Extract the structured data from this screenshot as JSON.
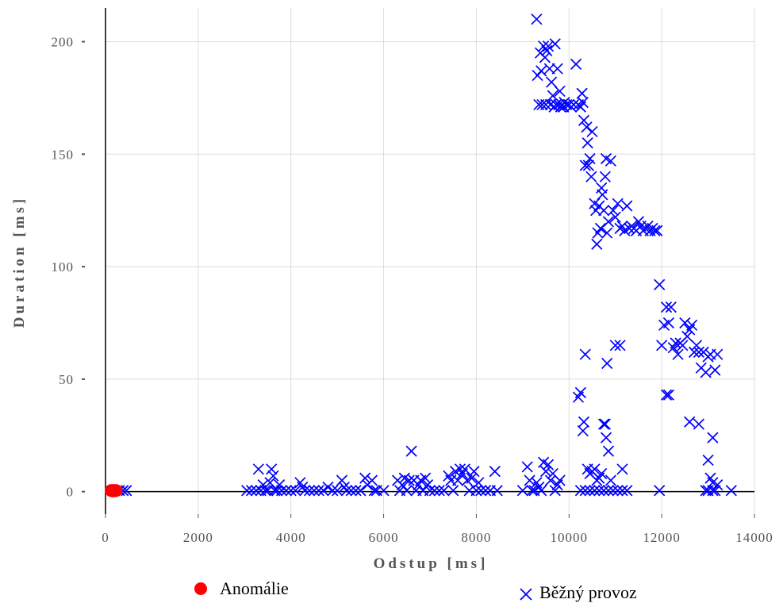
{
  "chart_data": {
    "type": "scatter",
    "title": "",
    "xlabel": "Odstup [ms]",
    "ylabel": "Duration [ms]",
    "xlim": [
      0,
      14000
    ],
    "ylim": [
      -10,
      215
    ],
    "xticks": [
      0,
      2000,
      4000,
      6000,
      8000,
      10000,
      12000,
      14000
    ],
    "yticks": [
      0,
      50,
      100,
      150,
      200
    ],
    "xtick_labels": [
      "0",
      "2000",
      "4000",
      "6000",
      "8000",
      "10000",
      "12000",
      "14000"
    ],
    "ytick_labels": [
      "0",
      "50",
      "100",
      "150",
      "200"
    ],
    "grid": true,
    "legend_position": "bottom",
    "series": [
      {
        "name": "Anomálie",
        "marker": "circle",
        "color": "#ff0000",
        "points": [
          [
            120,
            0.5
          ],
          [
            150,
            0.5
          ],
          [
            180,
            0.5
          ],
          [
            200,
            0.5
          ],
          [
            230,
            0.5
          ],
          [
            160,
            0.3
          ],
          [
            210,
            0.4
          ]
        ]
      },
      {
        "name": "Běžný provoz",
        "marker": "x",
        "color": "#0000ff",
        "points": [
          [
            300,
            0.5
          ],
          [
            380,
            0.5
          ],
          [
            450,
            0.5
          ],
          [
            3050,
            0.5
          ],
          [
            3150,
            0.5
          ],
          [
            3250,
            0.5
          ],
          [
            3300,
            10
          ],
          [
            3350,
            0.5
          ],
          [
            3400,
            3
          ],
          [
            3450,
            0.5
          ],
          [
            3500,
            0.5
          ],
          [
            3550,
            4
          ],
          [
            3580,
            10
          ],
          [
            3620,
            7
          ],
          [
            3650,
            0.5
          ],
          [
            3700,
            0.5
          ],
          [
            3750,
            3
          ],
          [
            3800,
            0.5
          ],
          [
            3900,
            0.5
          ],
          [
            4000,
            0.5
          ],
          [
            4100,
            0.5
          ],
          [
            4200,
            4
          ],
          [
            4250,
            2
          ],
          [
            4300,
            0.5
          ],
          [
            4400,
            0.5
          ],
          [
            4500,
            0.5
          ],
          [
            4600,
            0.5
          ],
          [
            4700,
            0.5
          ],
          [
            4800,
            2
          ],
          [
            4900,
            0.5
          ],
          [
            5000,
            0.5
          ],
          [
            5100,
            5
          ],
          [
            5150,
            2
          ],
          [
            5200,
            0.5
          ],
          [
            5300,
            0.5
          ],
          [
            5400,
            0.5
          ],
          [
            5500,
            0.5
          ],
          [
            5600,
            6
          ],
          [
            5650,
            3
          ],
          [
            5750,
            5
          ],
          [
            5800,
            0.5
          ],
          [
            5850,
            0.5
          ],
          [
            6000,
            0.5
          ],
          [
            6300,
            5
          ],
          [
            6350,
            0.5
          ],
          [
            6400,
            3
          ],
          [
            6450,
            6
          ],
          [
            6500,
            0.5
          ],
          [
            6550,
            5
          ],
          [
            6600,
            18
          ],
          [
            6650,
            5
          ],
          [
            6700,
            0.5
          ],
          [
            6750,
            3
          ],
          [
            6800,
            5
          ],
          [
            6850,
            0.5
          ],
          [
            6900,
            6
          ],
          [
            6950,
            3
          ],
          [
            7000,
            0.5
          ],
          [
            7100,
            0.5
          ],
          [
            7200,
            0.5
          ],
          [
            7300,
            0.5
          ],
          [
            7400,
            7
          ],
          [
            7450,
            5
          ],
          [
            7500,
            0.5
          ],
          [
            7550,
            9
          ],
          [
            7600,
            5
          ],
          [
            7650,
            10
          ],
          [
            7700,
            8
          ],
          [
            7750,
            10
          ],
          [
            7800,
            5
          ],
          [
            7850,
            0.5
          ],
          [
            7900,
            6
          ],
          [
            7950,
            9
          ],
          [
            8000,
            0.5
          ],
          [
            8050,
            4
          ],
          [
            8100,
            0.5
          ],
          [
            8200,
            0.5
          ],
          [
            8300,
            0.5
          ],
          [
            8400,
            9
          ],
          [
            8450,
            0.5
          ],
          [
            9000,
            0.5
          ],
          [
            9100,
            11
          ],
          [
            9150,
            5
          ],
          [
            9200,
            0.5
          ],
          [
            9250,
            0.5
          ],
          [
            9300,
            4
          ],
          [
            9350,
            2
          ],
          [
            9400,
            0.5
          ],
          [
            9450,
            13
          ],
          [
            9500,
            9
          ],
          [
            9550,
            12
          ],
          [
            9600,
            5
          ],
          [
            9650,
            8
          ],
          [
            9700,
            0.5
          ],
          [
            9750,
            3
          ],
          [
            9800,
            5
          ],
          [
            9300,
            210
          ],
          [
            9320,
            185
          ],
          [
            9350,
            172
          ],
          [
            9380,
            195
          ],
          [
            9400,
            187
          ],
          [
            9420,
            172
          ],
          [
            9450,
            198
          ],
          [
            9480,
            193
          ],
          [
            9500,
            172
          ],
          [
            9520,
            196
          ],
          [
            9550,
            198
          ],
          [
            9580,
            188
          ],
          [
            9600,
            172
          ],
          [
            9620,
            182
          ],
          [
            9650,
            176
          ],
          [
            9680,
            171
          ],
          [
            9700,
            199
          ],
          [
            9720,
            172
          ],
          [
            9750,
            188
          ],
          [
            9780,
            172
          ],
          [
            9800,
            178
          ],
          [
            9820,
            171
          ],
          [
            9850,
            172
          ],
          [
            9880,
            171
          ],
          [
            9900,
            173
          ],
          [
            9950,
            172
          ],
          [
            10000,
            172
          ],
          [
            10050,
            171
          ],
          [
            10100,
            172
          ],
          [
            10150,
            190
          ],
          [
            10200,
            172
          ],
          [
            10250,
            171
          ],
          [
            10280,
            177
          ],
          [
            10300,
            173
          ],
          [
            10320,
            165
          ],
          [
            10350,
            145
          ],
          [
            10380,
            162
          ],
          [
            10400,
            155
          ],
          [
            10420,
            145
          ],
          [
            10450,
            148
          ],
          [
            10480,
            140
          ],
          [
            10500,
            160
          ],
          [
            10550,
            128
          ],
          [
            10580,
            125
          ],
          [
            10600,
            110
          ],
          [
            10620,
            115
          ],
          [
            10650,
            127
          ],
          [
            10680,
            117
          ],
          [
            10700,
            135
          ],
          [
            10720,
            132
          ],
          [
            10750,
            125
          ],
          [
            10780,
            140
          ],
          [
            10800,
            148
          ],
          [
            10820,
            115
          ],
          [
            10850,
            120
          ],
          [
            10900,
            147
          ],
          [
            10950,
            125
          ],
          [
            11000,
            122
          ],
          [
            11050,
            128
          ],
          [
            11100,
            117
          ],
          [
            11150,
            118
          ],
          [
            11200,
            116
          ],
          [
            11250,
            127
          ],
          [
            11300,
            117
          ],
          [
            11350,
            118
          ],
          [
            11400,
            117
          ],
          [
            11450,
            116
          ],
          [
            11500,
            120
          ],
          [
            11550,
            118
          ],
          [
            11600,
            116
          ],
          [
            11650,
            117
          ],
          [
            11700,
            118
          ],
          [
            11750,
            116
          ],
          [
            11800,
            117
          ],
          [
            11850,
            116
          ],
          [
            11900,
            116
          ],
          [
            10200,
            42
          ],
          [
            10250,
            44
          ],
          [
            10300,
            27
          ],
          [
            10320,
            31
          ],
          [
            10350,
            61
          ],
          [
            10400,
            10
          ],
          [
            10450,
            8
          ],
          [
            10500,
            9
          ],
          [
            10550,
            10
          ],
          [
            10600,
            5
          ],
          [
            10650,
            6
          ],
          [
            10700,
            8
          ],
          [
            10750,
            30
          ],
          [
            10780,
            30
          ],
          [
            10800,
            24
          ],
          [
            10820,
            57
          ],
          [
            10850,
            18
          ],
          [
            10900,
            5
          ],
          [
            11000,
            65
          ],
          [
            11100,
            65
          ],
          [
            11150,
            10
          ],
          [
            10250,
            0.5
          ],
          [
            10350,
            0.5
          ],
          [
            10450,
            0.5
          ],
          [
            10550,
            0.5
          ],
          [
            10650,
            0.5
          ],
          [
            10750,
            0.5
          ],
          [
            10850,
            0.5
          ],
          [
            10950,
            0.5
          ],
          [
            11050,
            0.5
          ],
          [
            11150,
            0.5
          ],
          [
            11250,
            0.5
          ],
          [
            11950,
            92
          ],
          [
            12000,
            65
          ],
          [
            12050,
            74
          ],
          [
            12100,
            82
          ],
          [
            12150,
            75
          ],
          [
            12200,
            82
          ],
          [
            12250,
            64
          ],
          [
            12300,
            66
          ],
          [
            12350,
            61
          ],
          [
            12400,
            66
          ],
          [
            12450,
            65
          ],
          [
            12500,
            75
          ],
          [
            12550,
            69
          ],
          [
            12600,
            72
          ],
          [
            12650,
            74
          ],
          [
            12700,
            62
          ],
          [
            12750,
            65
          ],
          [
            12800,
            62
          ],
          [
            12850,
            55
          ],
          [
            12900,
            62
          ],
          [
            12950,
            53
          ],
          [
            13000,
            60
          ],
          [
            13050,
            61
          ],
          [
            13100,
            24
          ],
          [
            13150,
            54
          ],
          [
            13200,
            61
          ],
          [
            12100,
            43
          ],
          [
            12150,
            43
          ],
          [
            12600,
            31
          ],
          [
            12800,
            30
          ],
          [
            13000,
            14
          ],
          [
            13050,
            6
          ],
          [
            13100,
            4
          ],
          [
            13150,
            0.5
          ],
          [
            13200,
            3
          ],
          [
            11950,
            0.5
          ],
          [
            12950,
            0.5
          ],
          [
            13000,
            0.5
          ],
          [
            13100,
            0.5
          ],
          [
            13500,
            0.5
          ]
        ]
      }
    ]
  }
}
